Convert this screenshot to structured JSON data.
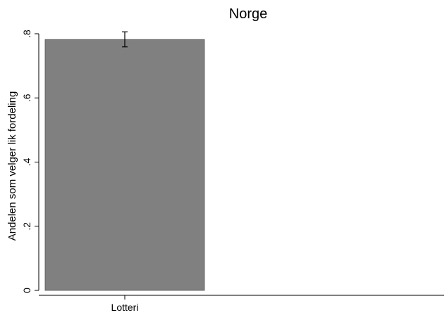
{
  "chart_data": {
    "type": "bar",
    "title": "Norge",
    "xlabel": "",
    "ylabel": "Andelen som velger lik fordeling",
    "categories": [
      "Lotteri"
    ],
    "values": [
      0.782
    ],
    "error_bars": [
      {
        "low": 0.759,
        "high": 0.806
      }
    ],
    "ylim": [
      0,
      0.8
    ],
    "yticks": [
      {
        "value": 0,
        "label": "0"
      },
      {
        "value": 0.2,
        "label": ".2"
      },
      {
        "value": 0.4,
        "label": ".4"
      },
      {
        "value": 0.6,
        "label": ".6"
      },
      {
        "value": 0.8,
        "label": ".8"
      }
    ],
    "grid": false,
    "legend": "none",
    "colors": {
      "bar": "#808080",
      "bar_edge": "#555555",
      "axis": "#000000",
      "error_bar": "#000000"
    }
  }
}
